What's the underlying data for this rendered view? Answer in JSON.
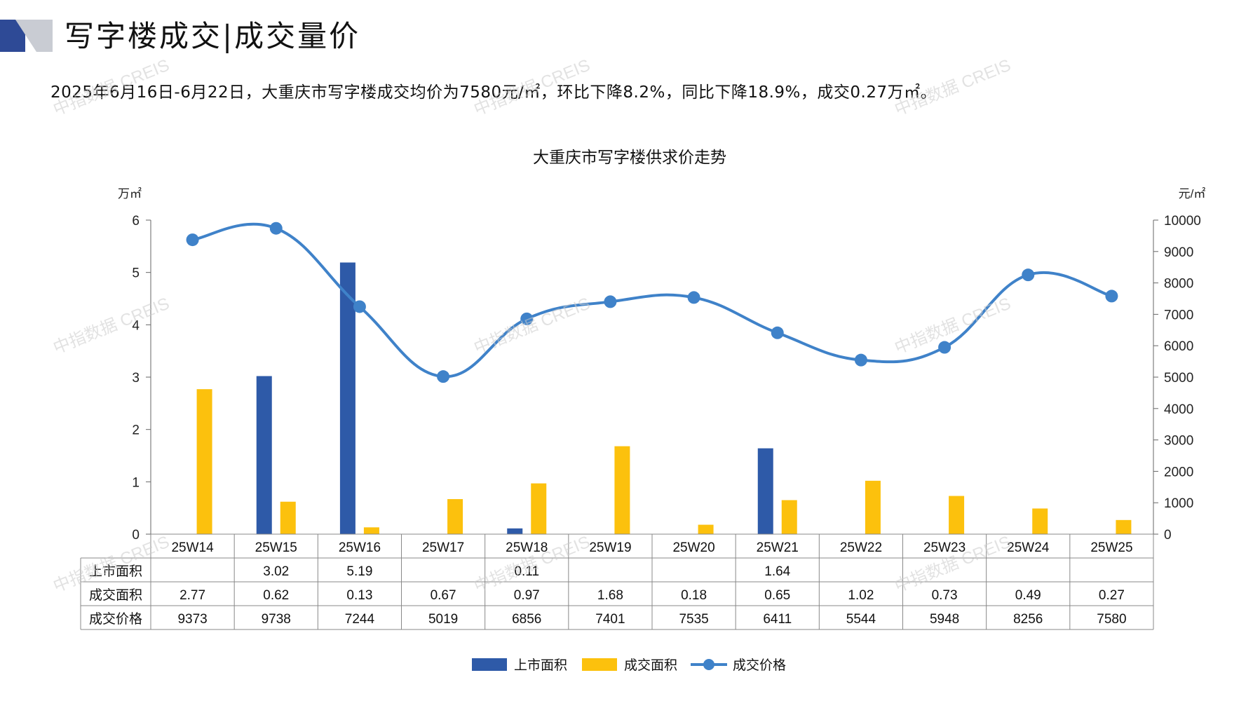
{
  "header": {
    "title": "写字楼成交|成交量价",
    "summary": "2025年6月16日-6月22日，大重庆市写字楼成交均价为7580元/㎡，环比下降8.2%，同比下降18.9%，成交0.27万㎡。"
  },
  "watermark": "中指数据 CREIS",
  "colors": {
    "listed_bar": "#2e5aa8",
    "sold_bar": "#fcc10d",
    "price_line": "#3f82c9",
    "deco_dark": "#2e4a96",
    "deco_light": "#c9ccd3"
  },
  "chart_data": {
    "type": "bar",
    "title": "大重庆市写字楼供求价走势",
    "y_left_unit": "万㎡",
    "y_right_unit": "元/㎡",
    "y_left_ticks": [
      "0",
      "1",
      "2",
      "3",
      "4",
      "5",
      "6"
    ],
    "y_right_ticks": [
      "0",
      "1000",
      "2000",
      "3000",
      "4000",
      "5000",
      "6000",
      "7000",
      "8000",
      "9000",
      "10000"
    ],
    "ylim_left": [
      0,
      6
    ],
    "ylim_right": [
      0,
      10000
    ],
    "categories": [
      "25W14",
      "25W15",
      "25W16",
      "25W17",
      "25W18",
      "25W19",
      "25W20",
      "25W21",
      "25W22",
      "25W23",
      "25W24",
      "25W25"
    ],
    "series": [
      {
        "name": "上市面积",
        "kind": "bar",
        "axis": "left",
        "values": [
          null,
          3.02,
          5.19,
          null,
          0.11,
          null,
          null,
          1.64,
          null,
          null,
          null,
          null
        ],
        "labels": [
          "",
          "3.02",
          "5.19",
          "",
          "0.11",
          "",
          "",
          "1.64",
          "",
          "",
          "",
          ""
        ]
      },
      {
        "name": "成交面积",
        "kind": "bar",
        "axis": "left",
        "values": [
          2.77,
          0.62,
          0.13,
          0.67,
          0.97,
          1.68,
          0.18,
          0.65,
          1.02,
          0.73,
          0.49,
          0.27
        ],
        "labels": [
          "2.77",
          "0.62",
          "0.13",
          "0.67",
          "0.97",
          "1.68",
          "0.18",
          "0.65",
          "1.02",
          "0.73",
          "0.49",
          "0.27"
        ]
      },
      {
        "name": "成交价格",
        "kind": "line",
        "axis": "right",
        "values": [
          9373,
          9738,
          7244,
          5019,
          6856,
          7401,
          7535,
          6411,
          5544,
          5948,
          8256,
          7580
        ],
        "labels": [
          "9373",
          "9738",
          "7244",
          "5019",
          "6856",
          "7401",
          "7535",
          "6411",
          "5544",
          "5948",
          "8256",
          "7580"
        ]
      }
    ],
    "legend_position": "bottom"
  }
}
